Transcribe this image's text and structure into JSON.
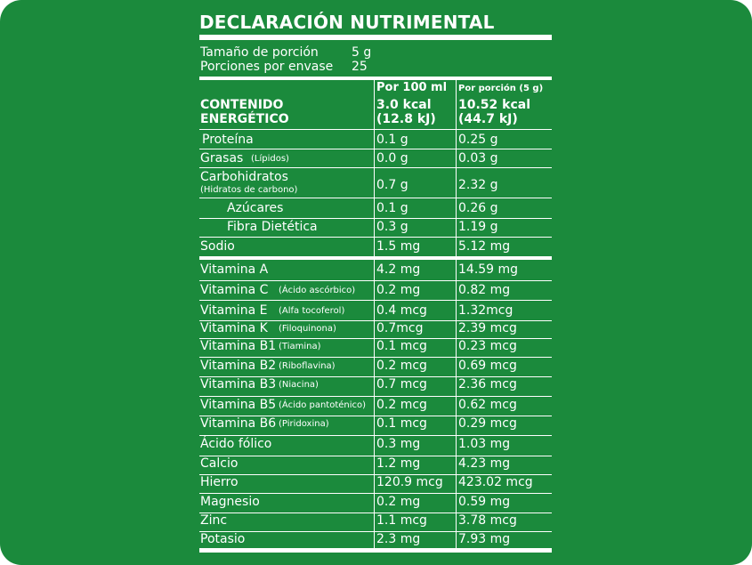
{
  "panel": {
    "title": "DECLARACIÓN NUTRIMENTAL",
    "serving_size_label": "Tamaño de porción",
    "serving_size_value": "5 g",
    "servings_label": "Porciones por envase",
    "servings_value": "25",
    "col_per100_header": "Por 100 ml",
    "col_portion_header": "Por porción (5 g)",
    "energy": {
      "label_line1": "CONTENIDO",
      "label_line2": "ENERGÉTICO",
      "per100_line1": "3.0 kcal",
      "per100_line2": "(12.8 kJ)",
      "portion_line1": "10.52 kcal",
      "portion_line2": "(44.7 kJ)"
    },
    "nutrients": [
      {
        "name": "Proteína",
        "sub": "",
        "per100": "0.1 g",
        "portion": "0.25 g"
      },
      {
        "name": "Grasas",
        "sub": "(Lípidos)",
        "per100": "0.0 g",
        "portion": "0.03 g"
      },
      {
        "name": "Carbohidratos",
        "sub": "(Hidratos de carbono)",
        "per100": "0.7 g",
        "portion": "2.32 g"
      },
      {
        "name": "Azúcares",
        "sub": "",
        "per100": "0.1 g",
        "portion": "0.26 g"
      },
      {
        "name": "Fibra Dietética",
        "sub": "",
        "per100": "0.3 g",
        "portion": "1.19 g"
      },
      {
        "name": "Sodio",
        "sub": "",
        "per100": "1.5 mg",
        "portion": "5.12 mg"
      }
    ],
    "vitamins": [
      {
        "name": "Vitamina A",
        "sub": "",
        "per100": "4.2 mg",
        "portion": "14.59 mg"
      },
      {
        "name": "Vitamina C",
        "sub": "(Ácido ascórbico)",
        "per100": "0.2 mg",
        "portion": "0.82 mg"
      },
      {
        "name": "Vitamina E",
        "sub": "(Alfa tocoferol)",
        "per100": "0.4 mcg",
        "portion": "1.32mcg"
      },
      {
        "name": "Vitamina K",
        "sub": "(Filoquinona)",
        "per100": "0.7mcg",
        "portion": "2.39 mcg"
      },
      {
        "name": "Vitamina B1",
        "sub": "(Tiamina)",
        "per100": "0.1 mcg",
        "portion": "0.23 mcg"
      },
      {
        "name": "Vitamina B2",
        "sub": "(Riboflavina)",
        "per100": "0.2 mcg",
        "portion": "0.69 mcg"
      },
      {
        "name": "Vitamina B3",
        "sub": "(Niacina)",
        "per100": "0.7 mcg",
        "portion": "2.36 mcg"
      },
      {
        "name": "Vitamina B5",
        "sub": "(Ácido pantoténico)",
        "per100": "0.2 mcg",
        "portion": "0.62 mcg"
      },
      {
        "name": "Vitamina B6",
        "sub": "(Piridoxina)",
        "per100": "0.1 mcg",
        "portion": "0.29 mcg"
      },
      {
        "name": "Ácido fólico",
        "sub": "",
        "per100": "0.3 mg",
        "portion": "1.03 mg"
      },
      {
        "name": "Calcio",
        "sub": "",
        "per100": "1.2 mg",
        "portion": "4.23 mg"
      },
      {
        "name": "Hierro",
        "sub": "",
        "per100": "120.9 mcg",
        "portion": "423.02 mcg"
      },
      {
        "name": "Magnesio",
        "sub": "",
        "per100": "0.2 mg",
        "portion": "0.59 mg"
      },
      {
        "name": "Zinc",
        "sub": "",
        "per100": "1.1 mcg",
        "portion": "3.78 mcg"
      },
      {
        "name": "Potasio",
        "sub": "",
        "per100": "2.3 mg",
        "portion": "7.93 mg"
      }
    ]
  },
  "colors": {
    "background": "#1b8a3c",
    "text": "#ffffff"
  }
}
